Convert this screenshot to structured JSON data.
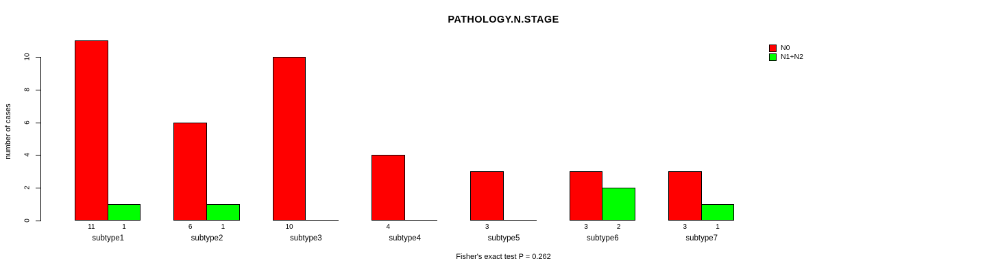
{
  "chart_data": {
    "type": "bar",
    "title": "PATHOLOGY.N.STAGE",
    "ylabel": "number of cases",
    "xlabel": "",
    "categories": [
      "subtype1",
      "subtype2",
      "subtype3",
      "subtype4",
      "subtype5",
      "subtype6",
      "subtype7"
    ],
    "series": [
      {
        "name": "N0",
        "color": "#ff0000",
        "values": [
          11,
          6,
          10,
          4,
          3,
          3,
          3
        ]
      },
      {
        "name": "N1+N2",
        "color": "#00ff00",
        "values": [
          1,
          1,
          0,
          0,
          0,
          2,
          1
        ]
      }
    ],
    "bar_value_labels_shown_when_nonzero": true,
    "ylim": [
      0,
      10
    ],
    "yticks": [
      0,
      2,
      4,
      6,
      8,
      10
    ],
    "grid": false,
    "legend_position": "top-right",
    "footnote": "Fisher's exact test P = 0.262",
    "colors": {
      "background": "#ffffff",
      "axis": "#000000",
      "text": "#000000"
    }
  }
}
